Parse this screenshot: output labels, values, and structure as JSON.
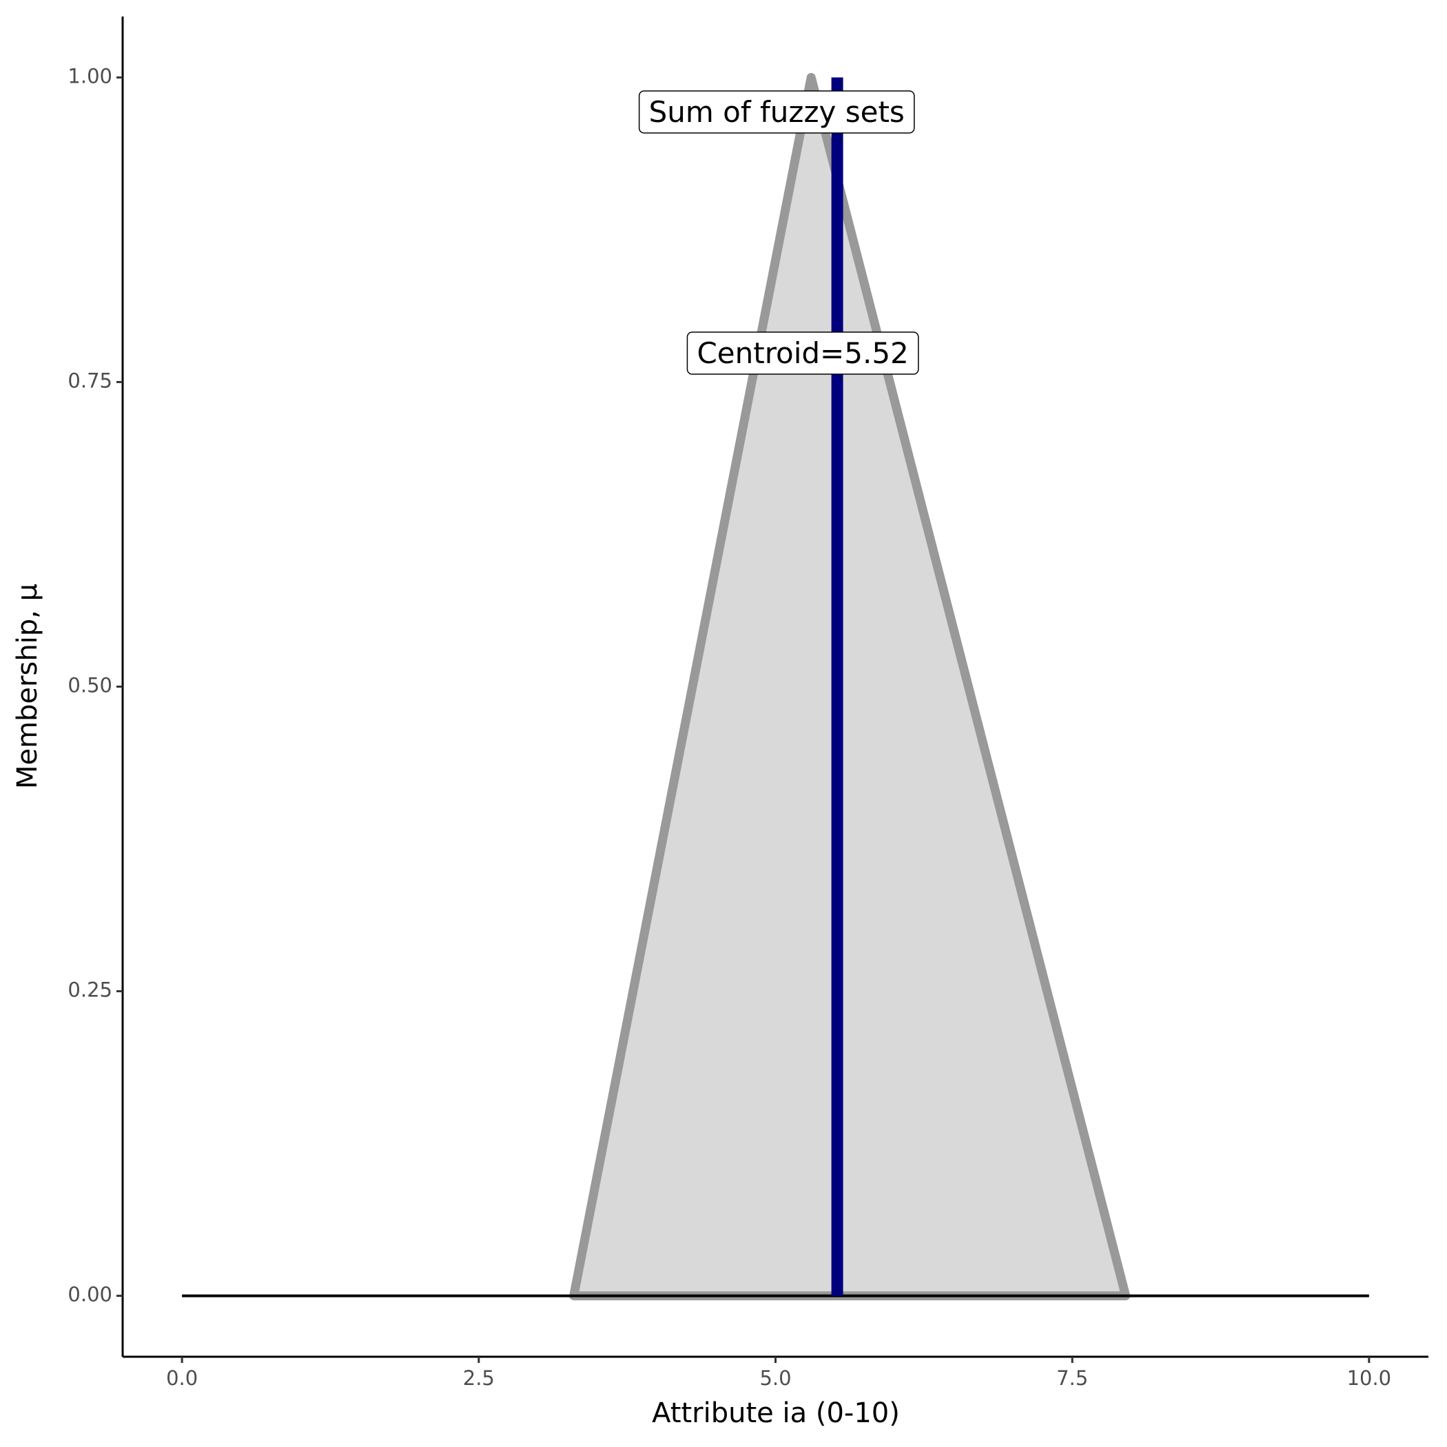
{
  "chart_data": {
    "type": "line",
    "x_label": "Attribute ia (0-10)",
    "y_label": "Membership, μ",
    "series": [
      {
        "x": [
          3.3,
          5.3,
          7.95
        ],
        "values": [
          0,
          1,
          0
        ],
        "color": "#999999",
        "fill": "#d9d9d9"
      },
      {
        "x": [
          0,
          10
        ],
        "values": [
          0,
          0
        ],
        "color": "#000000"
      }
    ],
    "centroid": {
      "value": 5.52,
      "color": "#00007f"
    },
    "annotations": [
      {
        "text": "Sum of fuzzy sets",
        "x": 5.01,
        "y": 0.97
      },
      {
        "text": "Centroid=5.52",
        "x": 5.23,
        "y": 0.772
      }
    ],
    "xlim": [
      -0.5,
      10.5
    ],
    "xticks": [
      {
        "value": 0,
        "label": "0.0"
      },
      2.5,
      {
        "value": 5,
        "label": "5.0"
      },
      7.5,
      {
        "value": 10,
        "label": "10.0"
      }
    ],
    "ylim": [
      -0.05,
      1.05
    ],
    "yticks": [
      {
        "value": 0,
        "label": "0.00"
      },
      {
        "value": 0.25,
        "label": "0.25"
      },
      {
        "value": 0.5,
        "label": "0.50"
      },
      {
        "value": 0.75,
        "label": "0.75"
      },
      {
        "value": 1,
        "label": "1.00"
      }
    ],
    "grid": false
  }
}
